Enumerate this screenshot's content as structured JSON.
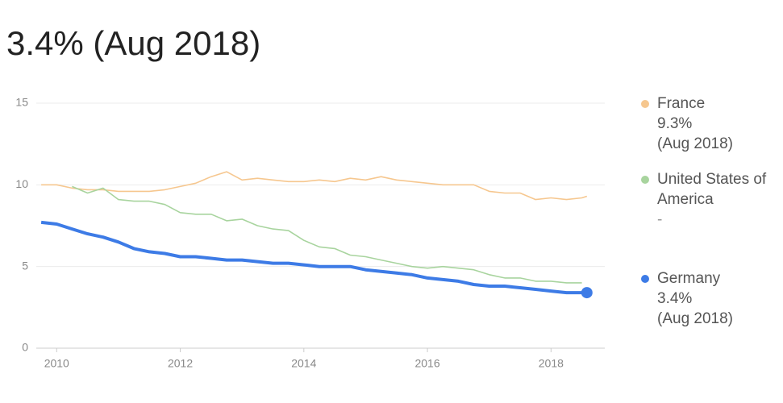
{
  "chart_data": {
    "type": "line",
    "title": "3.4% (Aug 2018)",
    "x": [
      2009.75,
      2010,
      2010.25,
      2010.5,
      2010.75,
      2011,
      2011.25,
      2011.5,
      2011.75,
      2012,
      2012.25,
      2012.5,
      2012.75,
      2013,
      2013.25,
      2013.5,
      2013.75,
      2014,
      2014.25,
      2014.5,
      2014.75,
      2015,
      2015.25,
      2015.5,
      2015.75,
      2016,
      2016.25,
      2016.5,
      2016.75,
      2017,
      2017.25,
      2017.5,
      2017.75,
      2018,
      2018.25,
      2018.5,
      2018.58
    ],
    "series": [
      {
        "name": "France",
        "color": "#f6c78f",
        "latest": "9.3%",
        "date": "(Aug 2018)",
        "values": [
          10.0,
          10.0,
          9.8,
          9.7,
          9.7,
          9.6,
          9.6,
          9.6,
          9.7,
          9.9,
          10.1,
          10.5,
          10.8,
          10.3,
          10.4,
          10.3,
          10.2,
          10.2,
          10.3,
          10.2,
          10.4,
          10.3,
          10.5,
          10.3,
          10.2,
          10.1,
          10.0,
          10.0,
          10.0,
          9.6,
          9.5,
          9.5,
          9.1,
          9.2,
          9.1,
          9.2,
          9.3
        ]
      },
      {
        "name": "United States of America",
        "color": "#a8d49e",
        "latest": "-",
        "values": [
          null,
          null,
          9.9,
          9.5,
          9.8,
          9.1,
          9.0,
          9.0,
          8.8,
          8.3,
          8.2,
          8.2,
          7.8,
          7.9,
          7.5,
          7.3,
          7.2,
          6.6,
          6.2,
          6.1,
          5.7,
          5.6,
          5.4,
          5.2,
          5.0,
          4.9,
          5.0,
          4.9,
          4.8,
          4.5,
          4.3,
          4.3,
          4.1,
          4.1,
          4.0,
          4.0,
          null
        ]
      },
      {
        "name": "Germany",
        "color": "#3d7be6",
        "latest": "3.4%",
        "date": "(Aug 2018)",
        "emphasized": true,
        "values": [
          7.7,
          7.6,
          7.3,
          7.0,
          6.8,
          6.5,
          6.1,
          5.9,
          5.8,
          5.6,
          5.6,
          5.5,
          5.4,
          5.4,
          5.3,
          5.2,
          5.2,
          5.1,
          5.0,
          5.0,
          5.0,
          4.8,
          4.7,
          4.6,
          4.5,
          4.3,
          4.2,
          4.1,
          3.9,
          3.8,
          3.8,
          3.7,
          3.6,
          3.5,
          3.4,
          3.4,
          3.4
        ]
      }
    ],
    "xlim": [
      2009.67,
      2018.87
    ],
    "xticks": [
      2010,
      2012,
      2014,
      2016,
      2018
    ],
    "ylim": [
      0,
      15
    ],
    "yticks": [
      0,
      5,
      10,
      15
    ],
    "grid": true
  }
}
